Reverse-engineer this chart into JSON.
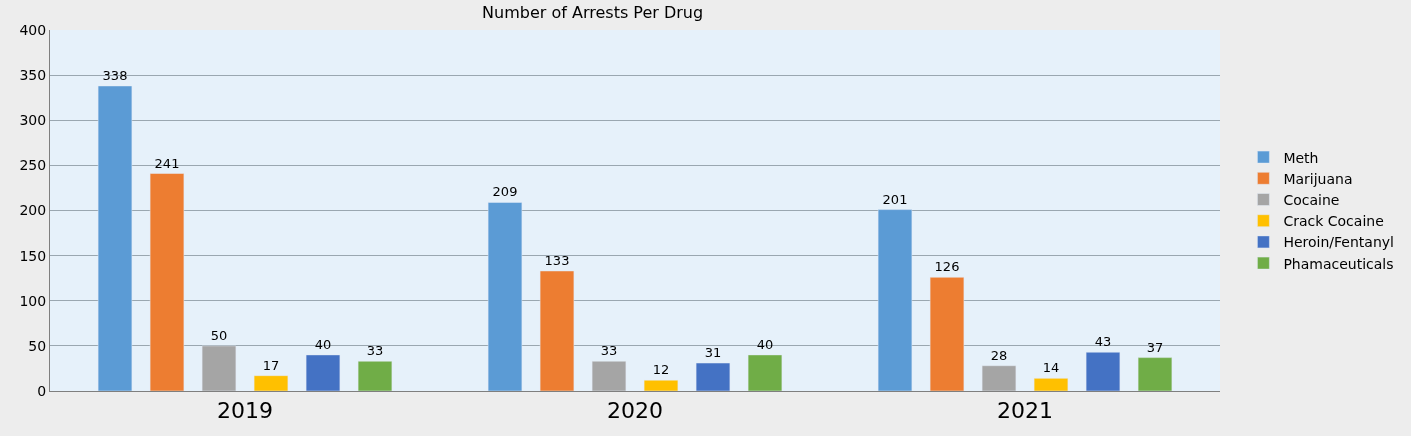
{
  "chart_data": {
    "type": "bar",
    "title": "Number of Arrests Per Drug",
    "categories": [
      "2019",
      "2020",
      "2021"
    ],
    "series": [
      {
        "name": "Meth",
        "color": "#5b9bd5",
        "values": [
          338,
          209,
          201
        ]
      },
      {
        "name": "Marijuana",
        "color": "#ed7d31",
        "values": [
          241,
          133,
          126
        ]
      },
      {
        "name": "Cocaine",
        "color": "#a5a5a5",
        "values": [
          50,
          33,
          28
        ]
      },
      {
        "name": "Crack Cocaine",
        "color": "#ffc000",
        "values": [
          17,
          12,
          14
        ]
      },
      {
        "name": "Heroin/Fentanyl",
        "color": "#4472c4",
        "values": [
          40,
          31,
          43
        ]
      },
      {
        "name": "Phamaceuticals",
        "color": "#70ad47",
        "values": [
          33,
          40,
          37
        ]
      }
    ],
    "ylim": [
      0,
      400
    ],
    "yticks": [
      0,
      50,
      100,
      150,
      200,
      250,
      300,
      350,
      400
    ],
    "grid": "y",
    "legend": "right",
    "data_labels": true
  }
}
